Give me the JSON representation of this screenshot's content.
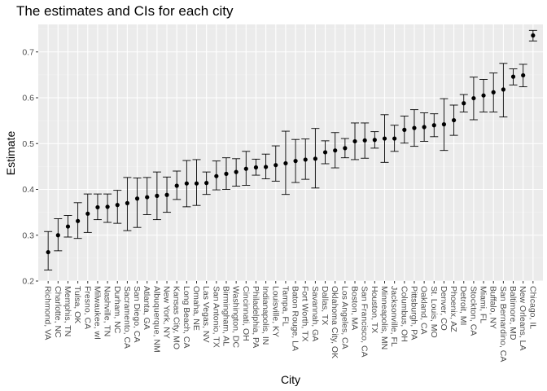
{
  "chart_data": {
    "type": "scatter",
    "title": "The estimates and CIs for each city",
    "xlabel": "City",
    "ylabel": "Estimate",
    "ylim": [
      0.2,
      0.76
    ],
    "yticks": [
      0.2,
      0.3,
      0.4,
      0.5,
      0.6,
      0.7
    ],
    "grid": true,
    "legend": "none",
    "colors": {
      "panel": "#ebebeb",
      "grid_major": "#ffffff",
      "grid_minor": "#f5f5f5",
      "point": "#000000"
    },
    "points": [
      {
        "city": "Richmond, VA",
        "estimate": 0.263,
        "low": 0.224,
        "high": 0.308
      },
      {
        "city": "Charlotte, NC",
        "estimate": 0.3,
        "low": 0.266,
        "high": 0.336
      },
      {
        "city": "Memphis, TN",
        "estimate": 0.319,
        "low": 0.296,
        "high": 0.343
      },
      {
        "city": "Tulsa, OK",
        "estimate": 0.331,
        "low": 0.293,
        "high": 0.371
      },
      {
        "city": "Fresno, CA",
        "estimate": 0.347,
        "low": 0.306,
        "high": 0.39
      },
      {
        "city": "Milwaukee, wI",
        "estimate": 0.361,
        "low": 0.334,
        "high": 0.39
      },
      {
        "city": "Nashville, TN",
        "estimate": 0.362,
        "low": 0.328,
        "high": 0.39
      },
      {
        "city": "Durham, NC",
        "estimate": 0.366,
        "low": 0.326,
        "high": 0.398
      },
      {
        "city": "Sacramento, CA",
        "estimate": 0.37,
        "low": 0.31,
        "high": 0.426
      },
      {
        "city": "San Diego, CA",
        "estimate": 0.38,
        "low": 0.317,
        "high": 0.425
      },
      {
        "city": "Atlanta, GA",
        "estimate": 0.383,
        "low": 0.345,
        "high": 0.426
      },
      {
        "city": "Albuquerque, NM",
        "estimate": 0.386,
        "low": 0.334,
        "high": 0.438
      },
      {
        "city": "New York, NY",
        "estimate": 0.388,
        "low": 0.35,
        "high": 0.427
      },
      {
        "city": "Kansas City, MO",
        "estimate": 0.408,
        "low": 0.378,
        "high": 0.44
      },
      {
        "city": "Long Beach, CA",
        "estimate": 0.413,
        "low": 0.362,
        "high": 0.463
      },
      {
        "city": "Omaha, NE",
        "estimate": 0.413,
        "low": 0.365,
        "high": 0.465
      },
      {
        "city": "Las Vegas, NV",
        "estimate": 0.414,
        "low": 0.389,
        "high": 0.438
      },
      {
        "city": "San Antonio, TX",
        "estimate": 0.429,
        "low": 0.399,
        "high": 0.462
      },
      {
        "city": "Birmingham, AL",
        "estimate": 0.434,
        "low": 0.4,
        "high": 0.469
      },
      {
        "city": "Washington, DC",
        "estimate": 0.438,
        "low": 0.407,
        "high": 0.467
      },
      {
        "city": "Cincinnati, OH",
        "estimate": 0.445,
        "low": 0.409,
        "high": 0.483
      },
      {
        "city": "Philadelphia, PA",
        "estimate": 0.448,
        "low": 0.431,
        "high": 0.466
      },
      {
        "city": "Indianapolis, IN",
        "estimate": 0.449,
        "low": 0.423,
        "high": 0.477
      },
      {
        "city": "Louisville, KY",
        "estimate": 0.453,
        "low": 0.418,
        "high": 0.495
      },
      {
        "city": "Tampa, FL",
        "estimate": 0.457,
        "low": 0.389,
        "high": 0.527
      },
      {
        "city": "Baton Rouge, LA",
        "estimate": 0.462,
        "low": 0.415,
        "high": 0.509
      },
      {
        "city": "Fort Worth, TX",
        "estimate": 0.465,
        "low": 0.422,
        "high": 0.51
      },
      {
        "city": "Savannah, GA",
        "estimate": 0.467,
        "low": 0.403,
        "high": 0.533
      },
      {
        "city": "Dallas, TX",
        "estimate": 0.481,
        "low": 0.456,
        "high": 0.506
      },
      {
        "city": "Oklahoma City, OK",
        "estimate": 0.485,
        "low": 0.447,
        "high": 0.524
      },
      {
        "city": "Los Angeles, CA",
        "estimate": 0.49,
        "low": 0.469,
        "high": 0.511
      },
      {
        "city": "Boston, MA",
        "estimate": 0.505,
        "low": 0.465,
        "high": 0.545
      },
      {
        "city": "San Francisco, CA",
        "estimate": 0.507,
        "low": 0.468,
        "high": 0.545
      },
      {
        "city": "Houston, TX",
        "estimate": 0.508,
        "low": 0.49,
        "high": 0.526
      },
      {
        "city": "Minneapolis, MN",
        "estimate": 0.511,
        "low": 0.459,
        "high": 0.563
      },
      {
        "city": "Jacksonville, FL",
        "estimate": 0.511,
        "low": 0.483,
        "high": 0.54
      },
      {
        "city": "Columbus, OH",
        "estimate": 0.53,
        "low": 0.501,
        "high": 0.56
      },
      {
        "city": "Pittsburgh, PA",
        "estimate": 0.534,
        "low": 0.494,
        "high": 0.574
      },
      {
        "city": "Oakland, CA",
        "estimate": 0.536,
        "low": 0.505,
        "high": 0.567
      },
      {
        "city": "St. Louis, MO",
        "estimate": 0.54,
        "low": 0.515,
        "high": 0.565
      },
      {
        "city": "Denver, CO",
        "estimate": 0.542,
        "low": 0.485,
        "high": 0.598
      },
      {
        "city": "Phoenix, AZ",
        "estimate": 0.551,
        "low": 0.518,
        "high": 0.584
      },
      {
        "city": "Detroit, MI",
        "estimate": 0.588,
        "low": 0.569,
        "high": 0.607
      },
      {
        "city": "Stockton, CA",
        "estimate": 0.599,
        "low": 0.552,
        "high": 0.645
      },
      {
        "city": "Miami, FL",
        "estimate": 0.605,
        "low": 0.569,
        "high": 0.64
      },
      {
        "city": "Buffalo, NY",
        "estimate": 0.612,
        "low": 0.569,
        "high": 0.654
      },
      {
        "city": "San Bernardino, CA",
        "estimate": 0.618,
        "low": 0.558,
        "high": 0.675
      },
      {
        "city": "Baltimore, MD",
        "estimate": 0.646,
        "low": 0.628,
        "high": 0.663
      },
      {
        "city": "New Orleans, LA",
        "estimate": 0.649,
        "low": 0.624,
        "high": 0.673
      },
      {
        "city": "Chicago, IL",
        "estimate": 0.736,
        "low": 0.724,
        "high": 0.747
      }
    ]
  }
}
